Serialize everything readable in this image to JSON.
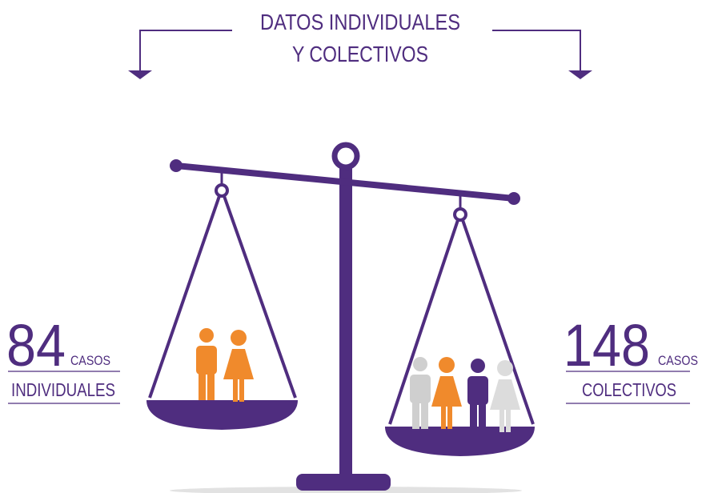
{
  "title": {
    "line1": "DATOS INDIVIDUALES",
    "line2": "Y COLECTIVOS"
  },
  "left": {
    "number": "84",
    "unit": "CASOS",
    "label": "INDIVIDUALES"
  },
  "right": {
    "number": "148",
    "unit": "CASOS",
    "label": "COLECTIVOS"
  }
}
